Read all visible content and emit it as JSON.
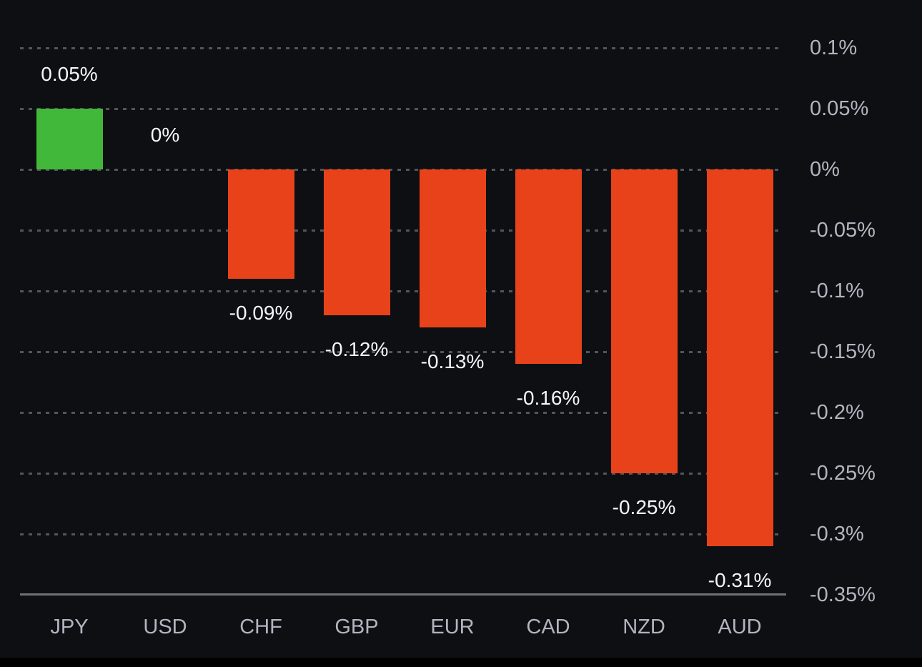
{
  "chart_data": {
    "type": "bar",
    "title": "",
    "xlabel": "",
    "ylabel": "",
    "unit": "%",
    "categories": [
      "JPY",
      "USD",
      "CHF",
      "GBP",
      "EUR",
      "CAD",
      "NZD",
      "AUD"
    ],
    "values": [
      0.05,
      0,
      -0.09,
      -0.12,
      -0.13,
      -0.16,
      -0.25,
      -0.31
    ],
    "value_labels": [
      "0.05%",
      "0%",
      "-0.09%",
      "-0.12%",
      "-0.13%",
      "-0.16%",
      "-0.25%",
      "-0.31%"
    ],
    "ylim": [
      -0.35,
      0.1
    ],
    "y_ticks": [
      0.1,
      0.05,
      0,
      -0.05,
      -0.1,
      -0.15,
      -0.2,
      -0.25,
      -0.3,
      -0.35
    ],
    "y_tick_labels": [
      "0.1%",
      "0.05%",
      "0%",
      "-0.05%",
      "-0.1%",
      "-0.15%",
      "-0.2%",
      "-0.25%",
      "-0.3%",
      "-0.35%"
    ],
    "grid": "horizontal-dashed",
    "legend": "none",
    "value_axis_position": "right",
    "colors": {
      "positive_bar": "#42b83a",
      "negative_bar": "#e8421b",
      "background": "#0e0f12",
      "value_label_text": "#f5f6f8",
      "tick_label_text": "#b1b5bf",
      "gridline": "#53555c",
      "axis_line": "#707279"
    }
  }
}
